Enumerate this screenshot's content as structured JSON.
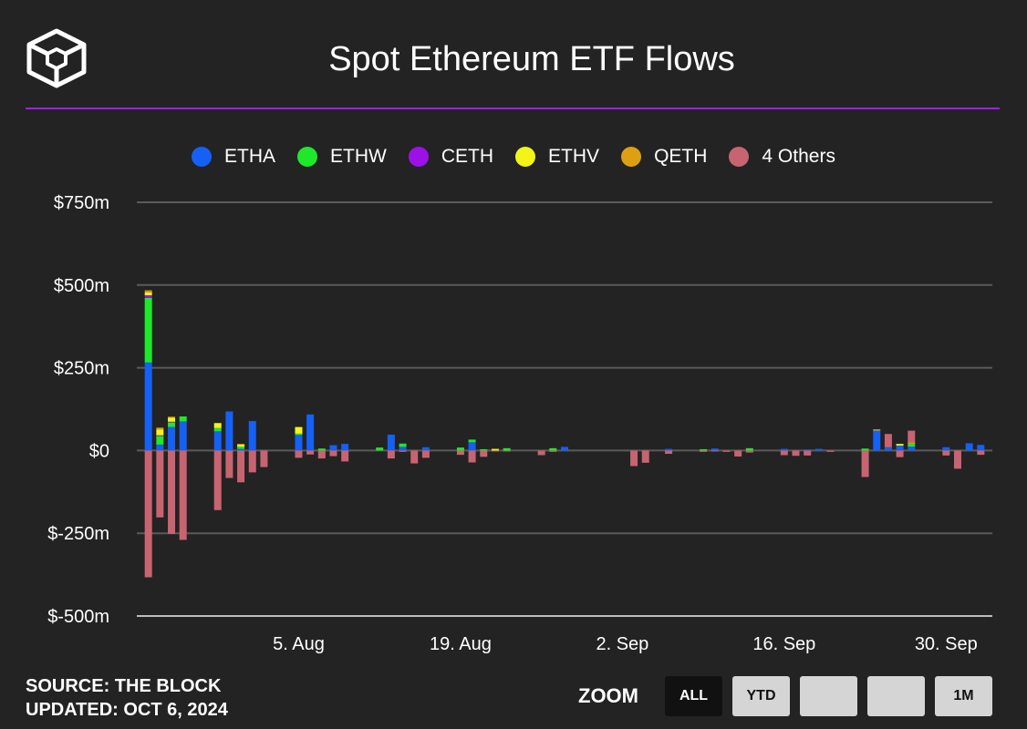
{
  "header": {
    "title": "Spot Ethereum ETF Flows"
  },
  "footer": {
    "source": "SOURCE: THE BLOCK",
    "updated": "UPDATED: OCT 6, 2024"
  },
  "zoom": {
    "label": "ZOOM",
    "buttons": [
      "ALL",
      "YTD",
      "",
      "",
      "1M"
    ],
    "active": 0
  },
  "chart_data": {
    "type": "bar",
    "stacked": true,
    "title": "Spot Ethereum ETF Flows",
    "ylabel": "",
    "ylim": [
      -500,
      750
    ],
    "yticks": [
      750,
      500,
      250,
      0,
      -250,
      -500
    ],
    "ytick_labels": [
      "$750m",
      "$500m",
      "$250m",
      "$0",
      "$-250m",
      "$-500m"
    ],
    "xticks": [
      {
        "date": "2024-08-05",
        "label": "5. Aug"
      },
      {
        "date": "2024-08-19",
        "label": "19. Aug"
      },
      {
        "date": "2024-09-02",
        "label": "2. Sep"
      },
      {
        "date": "2024-09-16",
        "label": "16. Sep"
      },
      {
        "date": "2024-09-30",
        "label": "30. Sep"
      }
    ],
    "xlim": [
      "2024-07-22",
      "2024-10-04"
    ],
    "grid": true,
    "legend_position": "top-center",
    "series": [
      {
        "name": "ETHA",
        "color": "#1560f5"
      },
      {
        "name": "ETHW",
        "color": "#1ee82a"
      },
      {
        "name": "CETH",
        "color": "#9b11e8"
      },
      {
        "name": "ETHV",
        "color": "#f2f516"
      },
      {
        "name": "QETH",
        "color": "#dca012"
      },
      {
        "name": "4 Others",
        "color": "#c86471"
      }
    ],
    "data": [
      {
        "date": "2024-07-23",
        "ETHA": 266,
        "ETHW": 195,
        "CETH": 8,
        "ETHV": 9,
        "QETH": 6,
        "4 Others": -383
      },
      {
        "date": "2024-07-24",
        "ETHA": 18,
        "ETHW": 27,
        "CETH": 1,
        "ETHV": 17,
        "QETH": 6,
        "4 Others": -202
      },
      {
        "date": "2024-07-25",
        "ETHA": 71,
        "ETHW": 15,
        "CETH": 1,
        "ETHV": 12,
        "QETH": 3,
        "4 Others": -252
      },
      {
        "date": "2024-07-26",
        "ETHA": 88,
        "ETHW": 15,
        "4 Others": -270
      },
      {
        "date": "2024-07-29",
        "ETHA": 58,
        "ETHW": 10,
        "ETHV": 15,
        "4 Others": -180
      },
      {
        "date": "2024-07-30",
        "ETHA": 118,
        "4 Others": -83
      },
      {
        "date": "2024-07-31",
        "ETHA": 5,
        "ETHW": 7,
        "ETHV": 6,
        "QETH": 2,
        "4 Others": -96
      },
      {
        "date": "2024-08-01",
        "ETHA": 89,
        "4 Others": -66
      },
      {
        "date": "2024-08-02",
        "4 Others": -50
      },
      {
        "date": "2024-08-05",
        "ETHA": 47,
        "ETHW": 4,
        "ETHV": 20,
        "4 Others": -22
      },
      {
        "date": "2024-08-06",
        "ETHA": 109,
        "4 Others": -12
      },
      {
        "date": "2024-08-07",
        "ETHW": 6,
        "4 Others": -24
      },
      {
        "date": "2024-08-08",
        "ETHA": 16,
        "4 Others": -17
      },
      {
        "date": "2024-08-09",
        "ETHA": 20,
        "4 Others": -33
      },
      {
        "date": "2024-08-12",
        "ETHW": 9
      },
      {
        "date": "2024-08-13",
        "ETHA": 48,
        "4 Others": -24
      },
      {
        "date": "2024-08-14",
        "ETHA": 11,
        "ETHW": 10,
        "4 Others": -4
      },
      {
        "date": "2024-08-15",
        "4 Others": -39
      },
      {
        "date": "2024-08-16",
        "ETHA": 10,
        "4 Others": -22
      },
      {
        "date": "2024-08-19",
        "ETHW": 9,
        "4 Others": -13
      },
      {
        "date": "2024-08-20",
        "ETHA": 25,
        "ETHW": 8,
        "4 Others": -36
      },
      {
        "date": "2024-08-21",
        "ETHW": 4,
        "4 Others": -19
      },
      {
        "date": "2024-08-22",
        "ETHV": 5,
        "4 Others": -2
      },
      {
        "date": "2024-08-23",
        "ETHW": 7,
        "4 Others": -2
      },
      {
        "date": "2024-08-26",
        "4 Others": -14
      },
      {
        "date": "2024-08-27",
        "ETHW": 7,
        "4 Others": -4
      },
      {
        "date": "2024-08-28",
        "ETHA": 11
      },
      {
        "date": "2024-09-03",
        "4 Others": -47
      },
      {
        "date": "2024-09-04",
        "4 Others": -37
      },
      {
        "date": "2024-09-06",
        "ETHA": 5,
        "4 Others": -10
      },
      {
        "date": "2024-09-09",
        "ETHW": 4,
        "4 Others": -4
      },
      {
        "date": "2024-09-10",
        "ETHA": 6,
        "4 Others": -2
      },
      {
        "date": "2024-09-11",
        "4 Others": -4
      },
      {
        "date": "2024-09-12",
        "4 Others": -18
      },
      {
        "date": "2024-09-13",
        "ETHW": 7,
        "4 Others": -6
      },
      {
        "date": "2024-09-16",
        "ETHA": 5,
        "4 Others": -14
      },
      {
        "date": "2024-09-17",
        "4 Others": -16
      },
      {
        "date": "2024-09-18",
        "ETHA": 3,
        "4 Others": -15
      },
      {
        "date": "2024-09-19",
        "ETHA": 5
      },
      {
        "date": "2024-09-20",
        "4 Others": -4
      },
      {
        "date": "2024-09-23",
        "ETHW": 6,
        "4 Others": -80
      },
      {
        "date": "2024-09-24",
        "ETHA": 60,
        "QETH": 4
      },
      {
        "date": "2024-09-25",
        "ETHA": 10,
        "4 Others": 40
      },
      {
        "date": "2024-09-26",
        "ETHA": 15,
        "ETHV": 5,
        "4 Others": -20
      },
      {
        "date": "2024-09-27",
        "ETHA": 12,
        "ETHW": 8,
        "QETH": 5,
        "4 Others": 35
      },
      {
        "date": "2024-09-30",
        "ETHA": 10,
        "4 Others": -15
      },
      {
        "date": "2024-10-01",
        "4 Others": -55
      },
      {
        "date": "2024-10-02",
        "ETHA": 22
      },
      {
        "date": "2024-10-03",
        "ETHA": 17,
        "4 Others": -13
      }
    ]
  }
}
